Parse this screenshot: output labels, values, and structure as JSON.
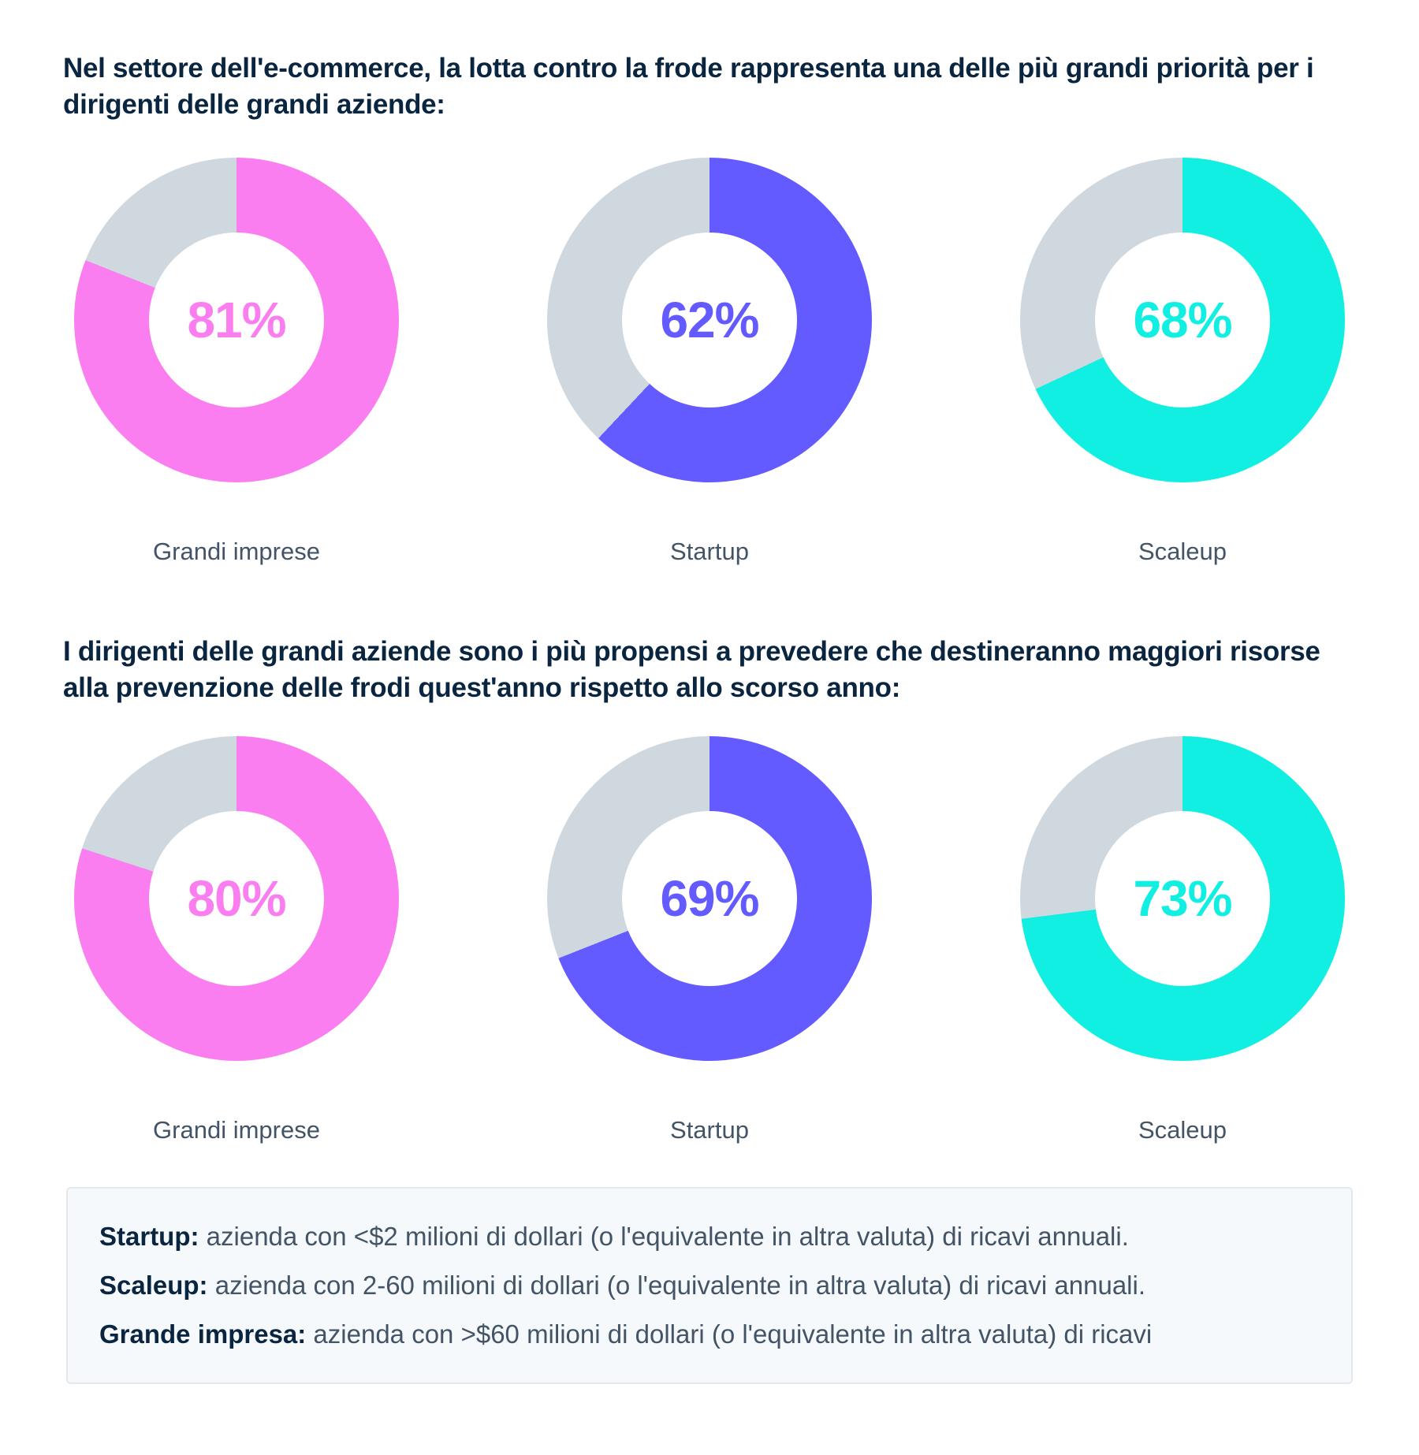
{
  "colors": {
    "heading": "#0A2540",
    "label": "#425466",
    "pink": "#FB7EF0",
    "purple": "#635BFF",
    "cyan": "#11EFE2",
    "track": "#CFD7DF",
    "box_background": "#F6F9FB",
    "box_border": "#E3E8EE"
  },
  "section1": {
    "heading": "Nel settore dell'e-commerce, la lotta contro la frode rappresenta una delle più grandi priorità per i dirigenti delle grandi aziende:",
    "charts": [
      {
        "label": "Grandi imprese",
        "value": 81,
        "display": "81%",
        "color": "#FB7EF0"
      },
      {
        "label": "Startup",
        "value": 62,
        "display": "62%",
        "color": "#635BFF"
      },
      {
        "label": "Scaleup",
        "value": 68,
        "display": "68%",
        "color": "#11EFE2"
      }
    ]
  },
  "section2": {
    "heading": "I dirigenti delle grandi aziende sono i più propensi a prevedere che destineranno maggiori risorse alla prevenzione delle frodi quest'anno rispetto allo scorso anno:",
    "charts": [
      {
        "label": "Grandi imprese",
        "value": 80,
        "display": "80%",
        "color": "#FB7EF0"
      },
      {
        "label": "Startup",
        "value": 69,
        "display": "69%",
        "color": "#635BFF"
      },
      {
        "label": "Scaleup",
        "value": 73,
        "display": "73%",
        "color": "#11EFE2"
      }
    ]
  },
  "definitions": [
    {
      "term": "Startup:",
      "text": " azienda con <$2 milioni di dollari (o l'equivalente in altra valuta) di ricavi annuali."
    },
    {
      "term": "Scaleup:",
      "text": " azienda con 2-60 milioni di dollari (o l'equivalente in altra valuta) di ricavi annuali."
    },
    {
      "term": "Grande impresa:",
      "text": " azienda con >$60 milioni di dollari (o l'equivalente in altra valuta) di ricavi"
    }
  ],
  "chart_data": [
    {
      "type": "pie",
      "style": "donut",
      "title": "Nel settore dell'e-commerce, la lotta contro la frode rappresenta una delle più grandi priorità per i dirigenti delle grandi aziende:",
      "categories": [
        "Grandi imprese",
        "Startup",
        "Scaleup"
      ],
      "values": [
        81,
        62,
        68
      ],
      "unit": "%",
      "series_colors": [
        "#FB7EF0",
        "#635BFF",
        "#11EFE2"
      ],
      "remainder_color": "#CFD7DF",
      "start_angle_deg": 0,
      "direction": "clockwise",
      "labels_position": "below",
      "value_labels": [
        "81%",
        "62%",
        "68%"
      ]
    },
    {
      "type": "pie",
      "style": "donut",
      "title": "I dirigenti delle grandi aziende sono i più propensi a prevedere che destineranno maggiori risorse alla prevenzione delle frodi quest'anno rispetto allo scorso anno:",
      "categories": [
        "Grandi imprese",
        "Startup",
        "Scaleup"
      ],
      "values": [
        80,
        69,
        73
      ],
      "unit": "%",
      "series_colors": [
        "#FB7EF0",
        "#635BFF",
        "#11EFE2"
      ],
      "remainder_color": "#CFD7DF",
      "start_angle_deg": 0,
      "direction": "clockwise",
      "labels_position": "below",
      "value_labels": [
        "80%",
        "69%",
        "73%"
      ]
    }
  ]
}
